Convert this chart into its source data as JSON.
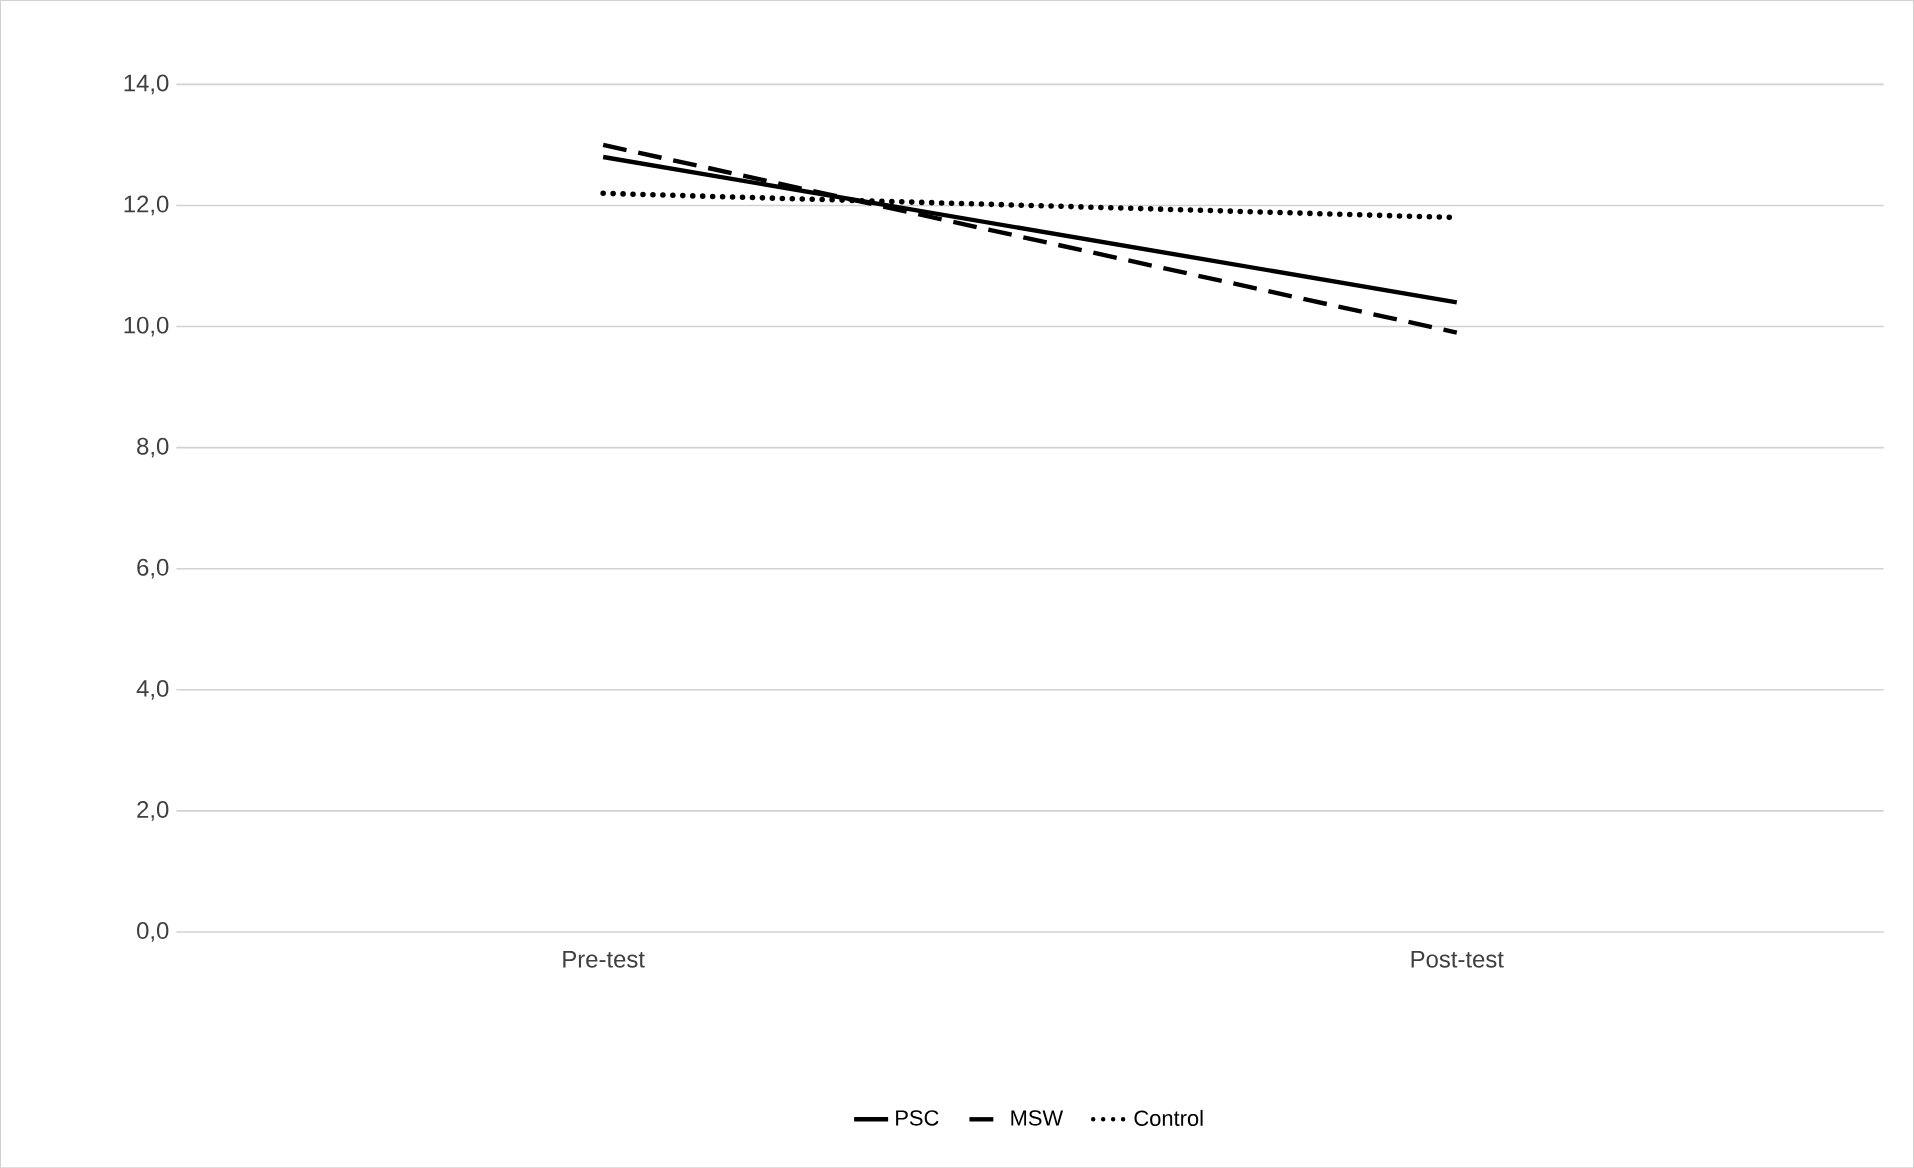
{
  "chart_data": {
    "type": "line",
    "categories": [
      "Pre-test",
      "Post-test"
    ],
    "series": [
      {
        "name": "PSC",
        "color": "#000000",
        "line_style": "solid",
        "values": [
          12.8,
          10.4
        ]
      },
      {
        "name": "MSW",
        "color": "#000000",
        "line_style": "dashed",
        "values": [
          13.0,
          9.9
        ]
      },
      {
        "name": "Control",
        "color": "#000000",
        "line_style": "dotted",
        "values": [
          12.2,
          11.8
        ]
      }
    ],
    "ylim": [
      0,
      14
    ],
    "yticks": [
      {
        "value": 0,
        "label": "0,0"
      },
      {
        "value": 2,
        "label": "2,0"
      },
      {
        "value": 4,
        "label": "4,0"
      },
      {
        "value": 6,
        "label": "6,0"
      },
      {
        "value": 8,
        "label": "8,0"
      },
      {
        "value": 10,
        "label": "10,0"
      },
      {
        "value": 12,
        "label": "12,0"
      },
      {
        "value": 14,
        "label": "14,0"
      }
    ],
    "grid": "y",
    "legend": "bottom",
    "marker": "none"
  }
}
